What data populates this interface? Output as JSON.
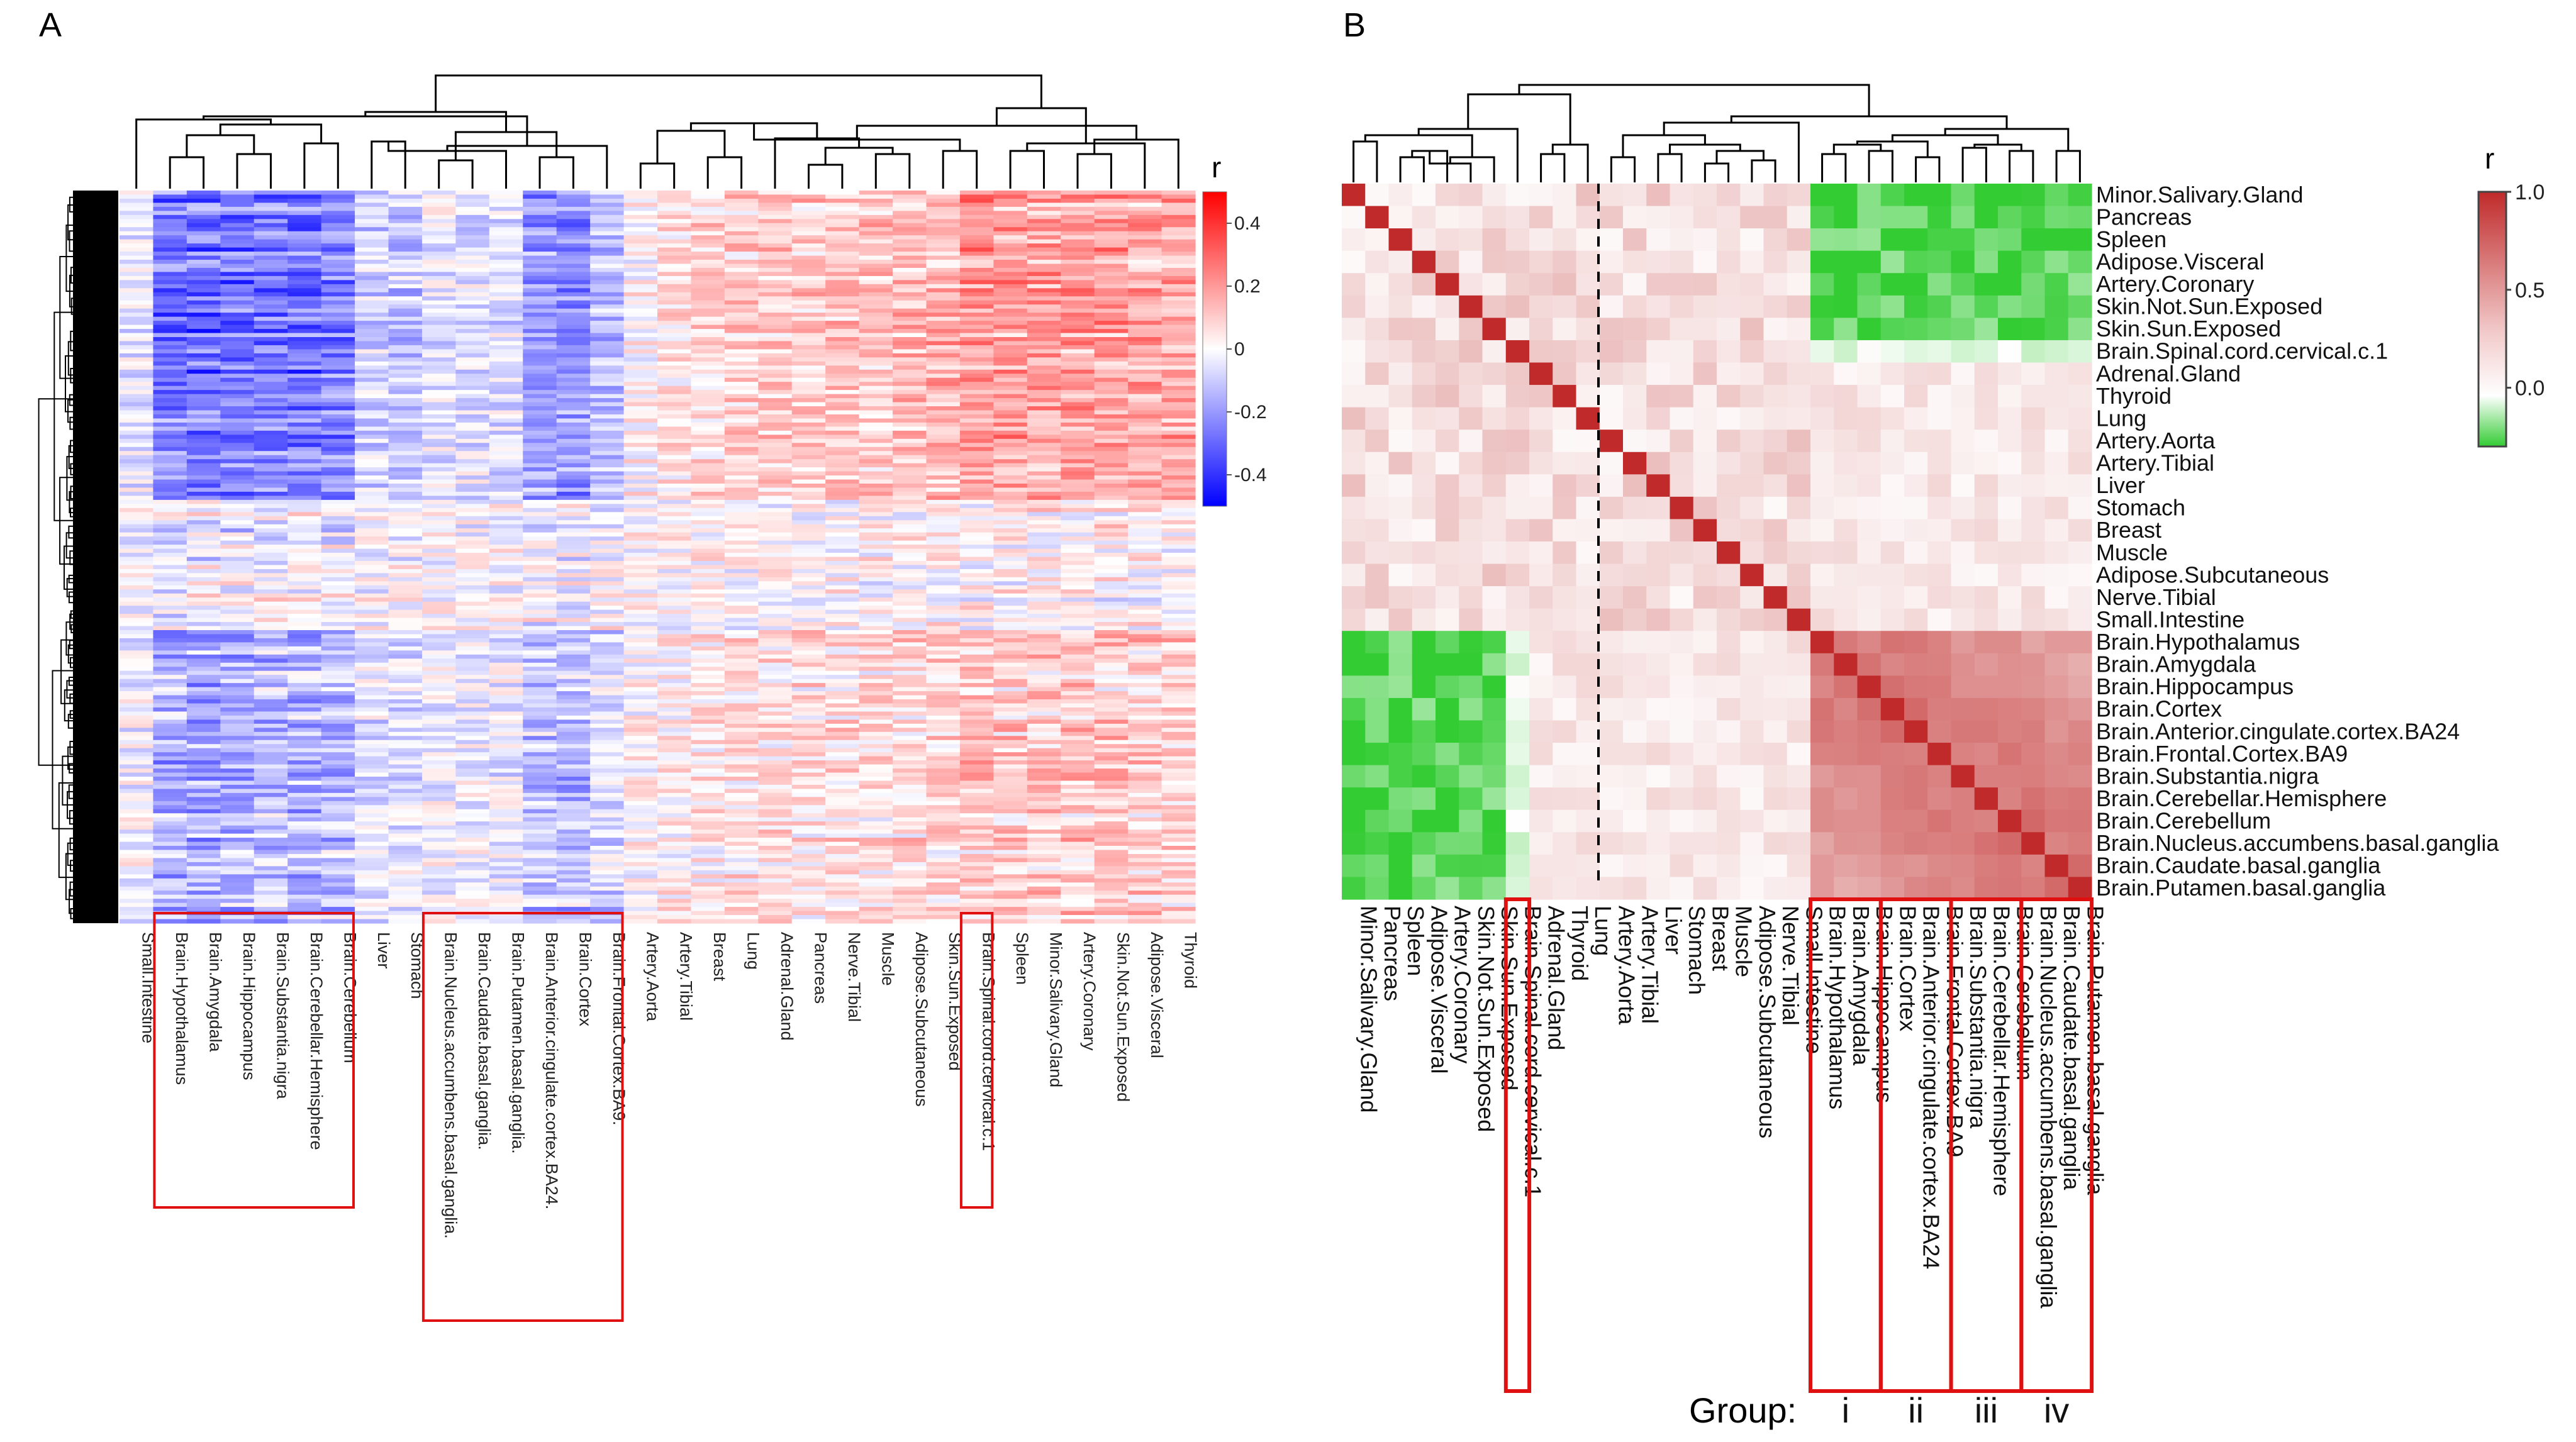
{
  "chart_data": [
    {
      "type": "heatmap",
      "panel_label": "A",
      "description_rows": "genes (hierarchically clustered)",
      "columns": [
        "Small.Intestine",
        "Brain.Hypothalamus",
        "Brain.Amygdala",
        "Brain.Hippocampus",
        "Brain.Substantia.nigra",
        "Brain.Cerebellar.Hemisphere",
        "Brain.Cerebellum",
        "Liver",
        "Stomach",
        "Brain.Nucleus.accumbens.basal.ganglia.",
        "Brain.Caudate.basal.ganglia.",
        "Brain.Putamen.basal.ganglia.",
        "Brain.Anterior.cingulate.cortex.BA24.",
        "Brain.Cortex",
        "Brain.Frontal.Cortex.BA9.",
        "Artery.Aorta",
        "Artery.Tibial",
        "Breast",
        "Lung",
        "Adrenal.Gland",
        "Pancreas",
        "Nerve.Tibial",
        "Muscle",
        "Adipose.Subcutaneous",
        "Skin.Sun.Exposed",
        "Brain.Spinal.cord.cervical.c.1",
        "Spleen",
        "Minor.Salivary.Gland",
        "Artery.Coronary",
        "Skin.Not.Sun.Exposed",
        "Adipose.Visceral",
        "Thyroid"
      ],
      "column_mean_r": [
        -0.05,
        -0.3,
        -0.32,
        -0.3,
        -0.28,
        -0.3,
        -0.26,
        -0.1,
        -0.12,
        -0.05,
        -0.06,
        -0.07,
        -0.22,
        -0.25,
        -0.15,
        0.02,
        0.05,
        0.08,
        0.1,
        0.1,
        0.12,
        0.12,
        0.12,
        0.14,
        0.16,
        0.22,
        0.2,
        0.2,
        0.2,
        0.2,
        0.18,
        0.18
      ],
      "colorbar": {
        "title": "r",
        "range": [
          -0.5,
          0.5
        ],
        "ticks": [
          "0.4",
          "0.2",
          "0",
          "-0.2",
          "-0.4"
        ]
      },
      "highlighted_groups": [
        [
          "Brain.Hypothalamus",
          "Brain.Amygdala",
          "Brain.Hippocampus",
          "Brain.Substantia.nigra",
          "Brain.Cerebellar.Hemisphere",
          "Brain.Cerebellum"
        ],
        [
          "Brain.Nucleus.accumbens.basal.ganglia.",
          "Brain.Caudate.basal.ganglia.",
          "Brain.Putamen.basal.ganglia.",
          "Brain.Anterior.cingulate.cortex.BA24.",
          "Brain.Cortex",
          "Brain.Frontal.Cortex.BA9."
        ],
        [
          "Brain.Spinal.cord.cervical.c.1"
        ]
      ]
    },
    {
      "type": "heatmap",
      "panel_label": "B",
      "description": "tissue-by-tissue correlation matrix",
      "tissues": [
        "Minor.Salivary.Gland",
        "Pancreas",
        "Spleen",
        "Adipose.Visceral",
        "Artery.Coronary",
        "Skin.Not.Sun.Exposed",
        "Skin.Sun.Exposed",
        "Brain.Spinal.cord.cervical.c.1",
        "Adrenal.Gland",
        "Thyroid",
        "Lung",
        "Artery.Aorta",
        "Artery.Tibial",
        "Liver",
        "Stomach",
        "Breast",
        "Muscle",
        "Adipose.Subcutaneous",
        "Nerve.Tibial",
        "Small.Intestine",
        "Brain.Hypothalamus",
        "Brain.Amygdala",
        "Brain.Hippocampus",
        "Brain.Cortex",
        "Brain.Anterior.cingulate.cortex.BA24",
        "Brain.Frontal.Cortex.BA9",
        "Brain.Substantia.nigra",
        "Brain.Cerebellar.Hemisphere",
        "Brain.Cerebellum",
        "Brain.Nucleus.accumbens.basal.ganglia",
        "Brain.Caudate.basal.ganglia",
        "Brain.Putamen.basal.ganglia"
      ],
      "blocks": {
        "peripheral": [
          0,
          19
        ],
        "brain": [
          20,
          31
        ]
      },
      "r_within_peripheral": 0.25,
      "r_within_brain": 0.7,
      "r_brain_vs_first_tissues": -0.25,
      "r_diagonal": 1.0,
      "colorbar": {
        "title": "r",
        "range": [
          -0.3,
          1.0
        ],
        "ticks": [
          "1.0",
          "0.5",
          "0.0"
        ]
      },
      "group_axis_label": "Group:",
      "groups": [
        "i",
        "ii",
        "iii",
        "iv"
      ]
    }
  ]
}
